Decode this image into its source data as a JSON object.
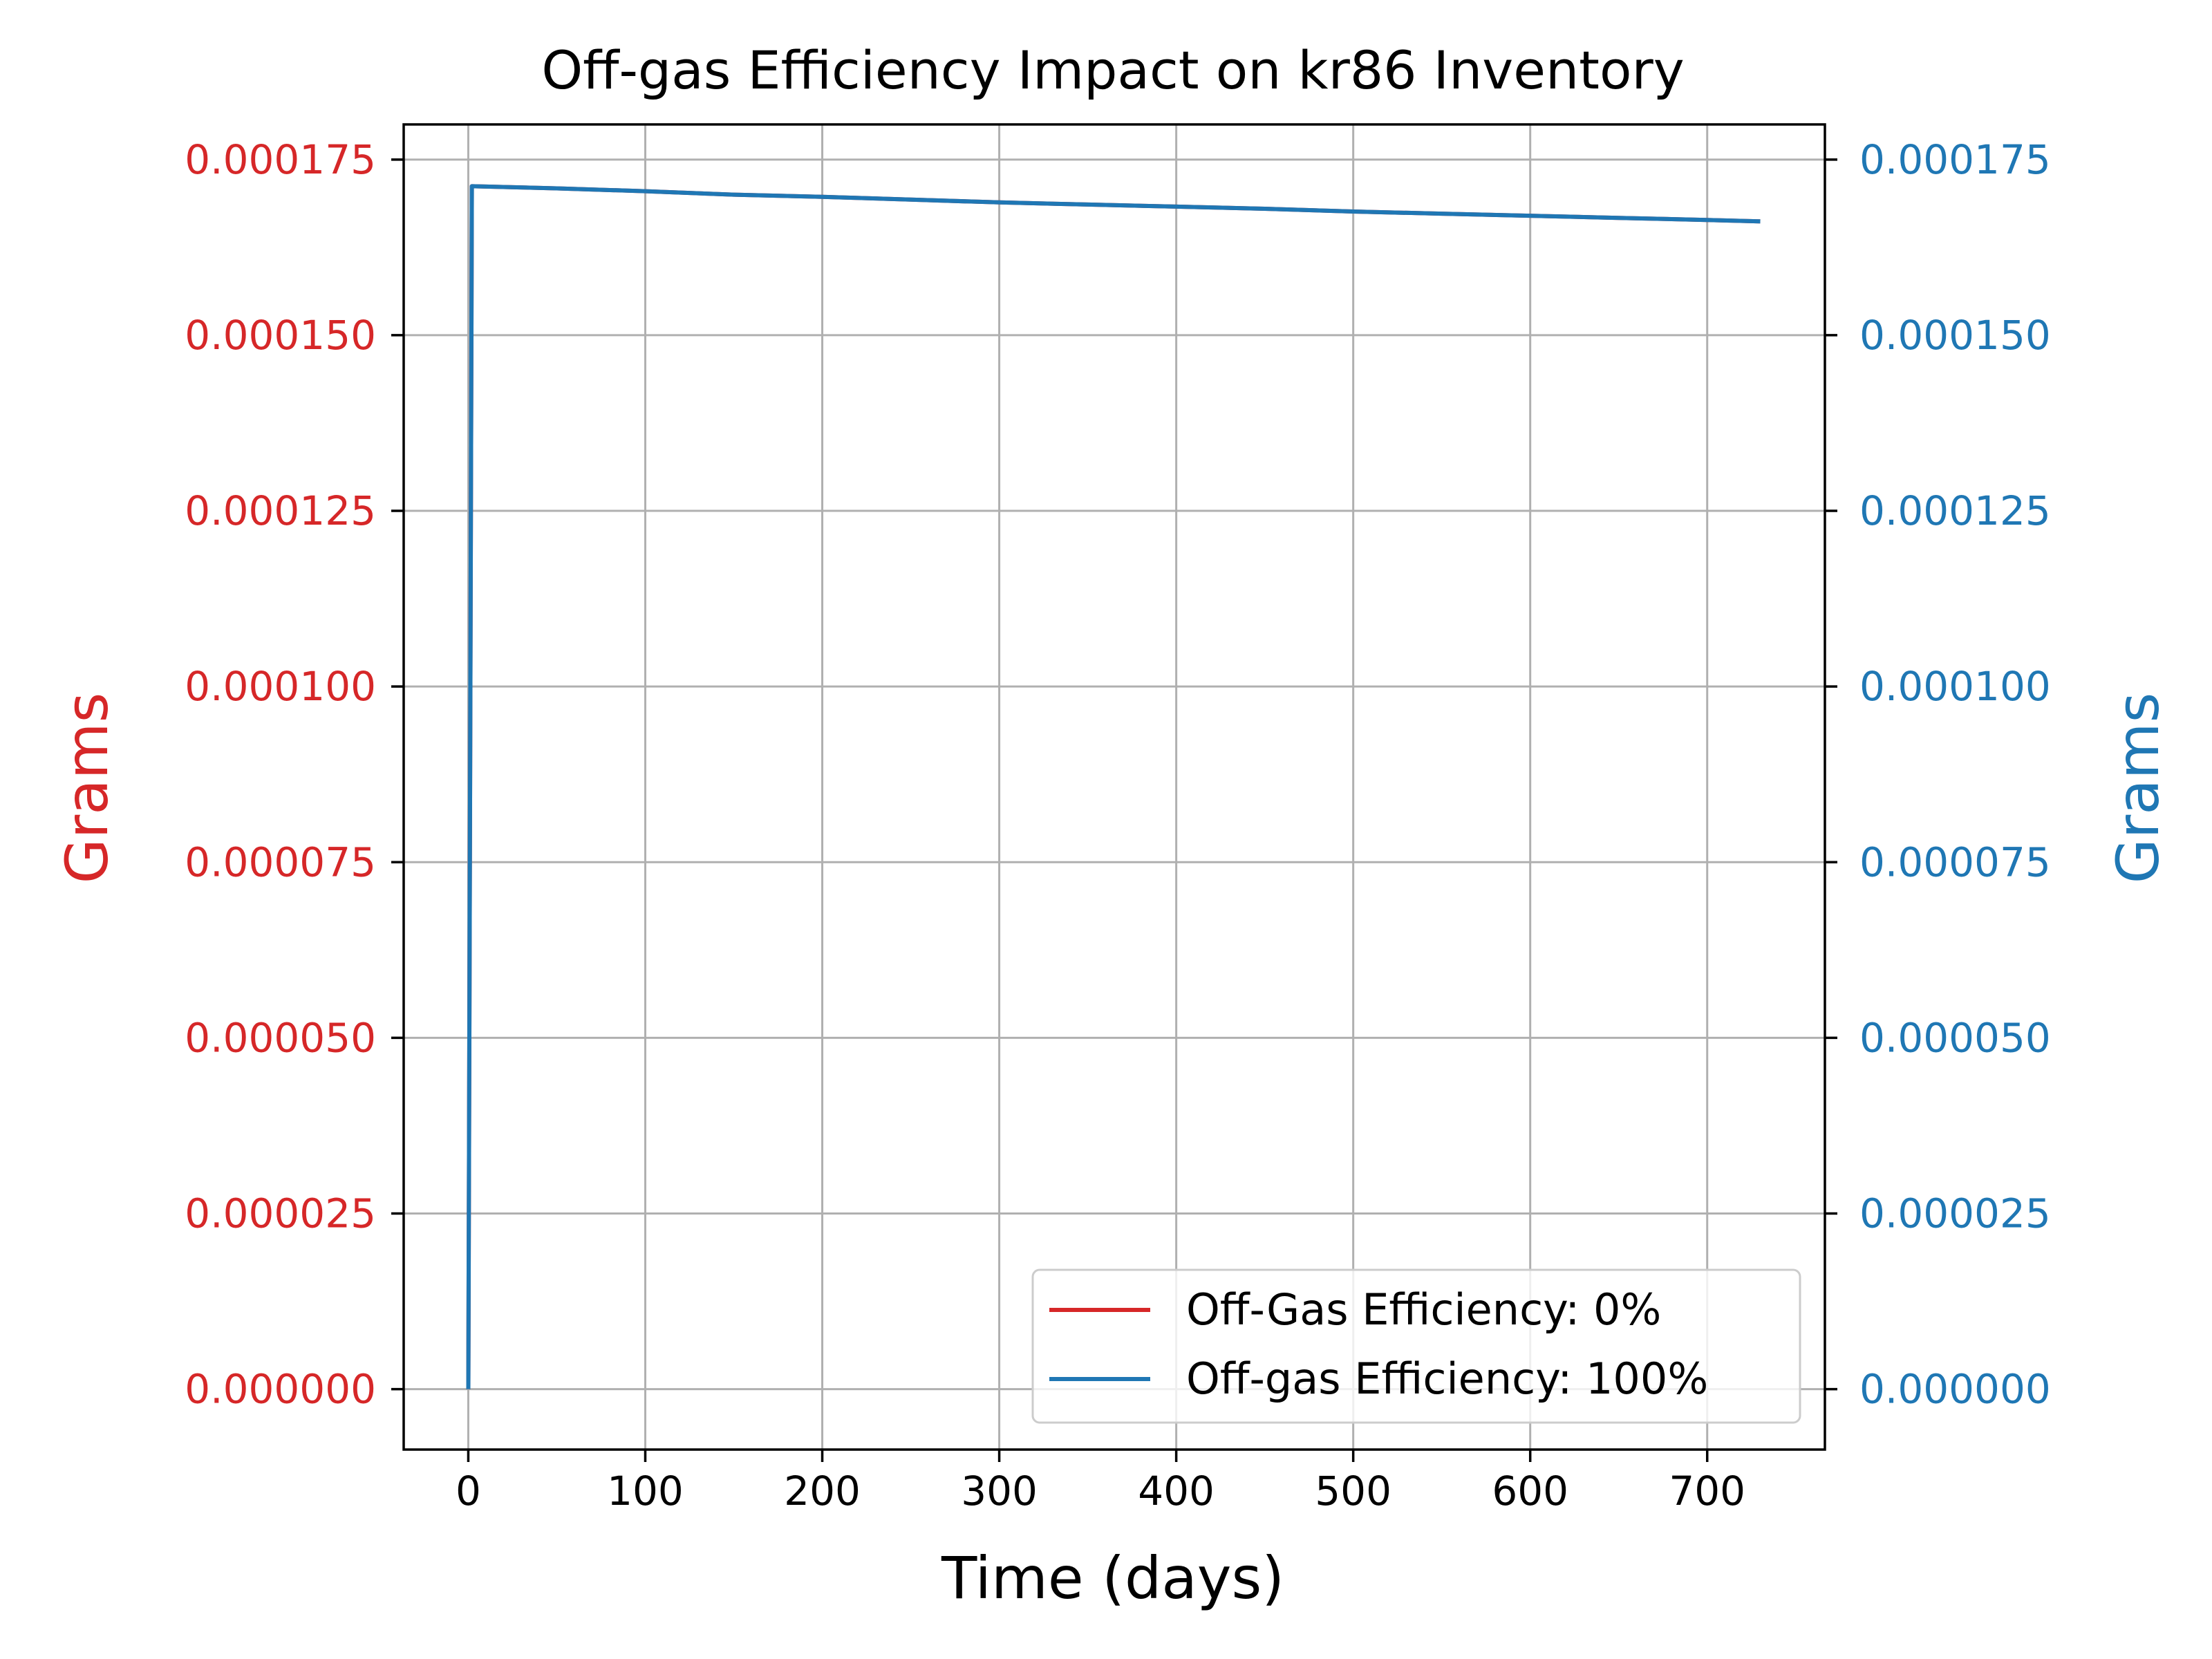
{
  "chart_data": {
    "type": "line",
    "title": "Off-gas Efficiency Impact on kr86 Inventory",
    "xlabel": "Time (days)",
    "ylabel_left": "Grams",
    "ylabel_right": "Grams",
    "xlim": [
      -36.5,
      766.5
    ],
    "ylim": [
      -8.6e-06,
      0.00018
    ],
    "x_ticks": [
      0,
      100,
      200,
      300,
      400,
      500,
      600,
      700
    ],
    "x_tick_labels": [
      "0",
      "100",
      "200",
      "300",
      "400",
      "500",
      "600",
      "700"
    ],
    "y_ticks": [
      0,
      2.5e-05,
      5e-05,
      7.5e-05,
      0.0001,
      0.000125,
      0.00015,
      0.000175
    ],
    "y_tick_labels": [
      "0.000000",
      "0.000025",
      "0.000050",
      "0.000075",
      "0.000100",
      "0.000125",
      "0.000150",
      "0.000175"
    ],
    "grid": true,
    "legend_position": "bottom-right",
    "series": [
      {
        "name": "Off-Gas Efficiency: 0%",
        "color": "#d62728",
        "axis": "left",
        "x": [
          0,
          2,
          50,
          100,
          150,
          200,
          250,
          300,
          350,
          400,
          450,
          500,
          550,
          600,
          650,
          700,
          730
        ],
        "y": [
          0,
          0.0001712,
          0.0001709,
          0.0001705,
          0.00017,
          0.0001697,
          0.0001693,
          0.0001689,
          0.0001686,
          0.0001683,
          0.000168,
          0.0001676,
          0.0001673,
          0.000167,
          0.0001667,
          0.0001664,
          0.0001662
        ]
      },
      {
        "name": "Off-gas Efficiency: 100%",
        "color": "#1f77b4",
        "axis": "right",
        "x": [
          0,
          2,
          50,
          100,
          150,
          200,
          250,
          300,
          350,
          400,
          450,
          500,
          550,
          600,
          650,
          700,
          730
        ],
        "y": [
          0,
          0.0001712,
          0.0001709,
          0.0001705,
          0.00017,
          0.0001697,
          0.0001693,
          0.0001689,
          0.0001686,
          0.0001683,
          0.000168,
          0.0001676,
          0.0001673,
          0.000167,
          0.0001667,
          0.0001664,
          0.0001662
        ]
      }
    ]
  },
  "colors": {
    "left_axis": "#d62728",
    "right_axis": "#1f77b4",
    "grid": "#b0b0b0",
    "frame": "#000000"
  }
}
